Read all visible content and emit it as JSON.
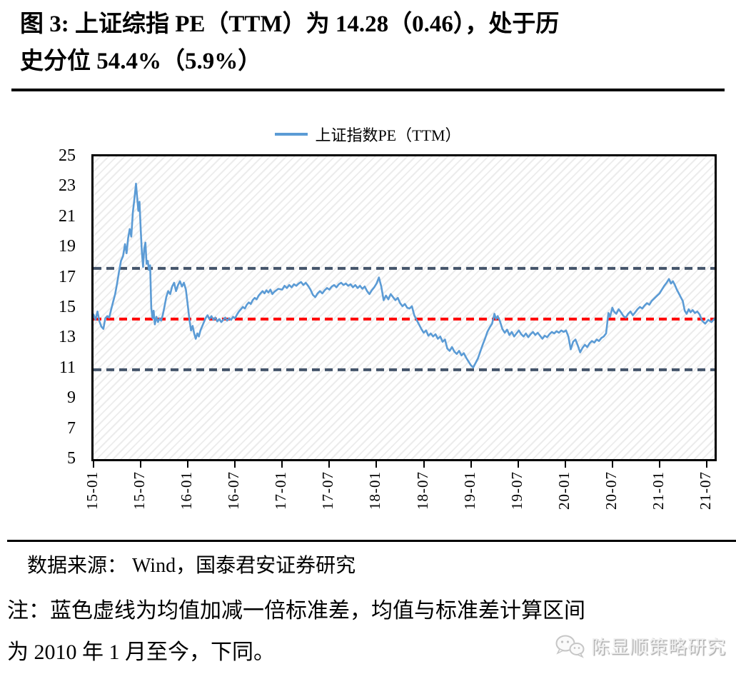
{
  "figure": {
    "title_line1": "图 3: 上证综指 PE（TTM）为 14.28（0.46），处于历",
    "title_line2": "史分位 54.4%（5.9%）",
    "source": "数据来源： Wind，国泰君安证券研究",
    "note_line1": "注：蓝色虚线为均值加减一倍标准差，均值与标准差计算区间",
    "note_line2": "为 2010 年 1 月至今，下同。",
    "watermark": "陈显顺策略研究"
  },
  "colors": {
    "series_blue": "#5B9BD5",
    "mean_red": "#FF0000",
    "band_navy": "#44546A",
    "hatch_gray": "#ececec",
    "axis_black": "#000000"
  },
  "chart_data": {
    "type": "line",
    "title": "",
    "legend_position": "top-center",
    "grid": false,
    "plot_background": "diagonal-hatch",
    "legend": [
      {
        "label": "上证指数PE（TTM）",
        "color": "#5B9BD5"
      }
    ],
    "x_axis": {
      "unit": "months since 2015-01",
      "min": 0,
      "max": 79,
      "tick_interval_months": 6,
      "tick_labels": [
        "15-01",
        "15-07",
        "16-01",
        "16-07",
        "17-01",
        "17-07",
        "18-01",
        "18-07",
        "19-01",
        "19-07",
        "20-01",
        "20-07",
        "21-01",
        "21-07"
      ]
    },
    "y_axis": {
      "min": 5,
      "max": 25,
      "ticks": [
        25,
        23,
        21,
        19,
        17,
        15,
        13,
        11,
        9,
        7,
        5
      ]
    },
    "reference_lines": [
      {
        "name": "mean",
        "value": 14.25,
        "color": "#FF0000",
        "style": "dashed"
      },
      {
        "name": "mean_plus_1std",
        "value": 17.6,
        "color": "#44546A",
        "style": "dashed"
      },
      {
        "name": "mean_minus_1std",
        "value": 10.9,
        "color": "#44546A",
        "style": "dashed"
      }
    ],
    "series": [
      {
        "name": "上证指数PE（TTM）",
        "color": "#5B9BD5",
        "current_value": 14.28,
        "points": [
          [
            0,
            14.55
          ],
          [
            0.25,
            14.2
          ],
          [
            0.5,
            14.75
          ],
          [
            0.75,
            14.1
          ],
          [
            1,
            13.75
          ],
          [
            1.25,
            13.6
          ],
          [
            1.5,
            14.3
          ],
          [
            1.75,
            14.45
          ],
          [
            2,
            14.35
          ],
          [
            2.25,
            14.9
          ],
          [
            2.5,
            15.4
          ],
          [
            2.75,
            15.9
          ],
          [
            3,
            16.6
          ],
          [
            3.25,
            17.4
          ],
          [
            3.5,
            18.1
          ],
          [
            3.75,
            18.4
          ],
          [
            4,
            19.2
          ],
          [
            4.2,
            18.6
          ],
          [
            4.4,
            19.6
          ],
          [
            4.6,
            20.2
          ],
          [
            4.8,
            19.7
          ],
          [
            5,
            21.3
          ],
          [
            5.2,
            22.2
          ],
          [
            5.4,
            23.2
          ],
          [
            5.55,
            22.3
          ],
          [
            5.7,
            21.4
          ],
          [
            5.85,
            22.0
          ],
          [
            6,
            20.2
          ],
          [
            6.15,
            18.7
          ],
          [
            6.3,
            17.7
          ],
          [
            6.45,
            18.9
          ],
          [
            6.6,
            19.3
          ],
          [
            6.75,
            17.9
          ],
          [
            6.9,
            18.1
          ],
          [
            7.05,
            17.5
          ],
          [
            7.2,
            17.8
          ],
          [
            7.35,
            15.0
          ],
          [
            7.5,
            14.3
          ],
          [
            7.65,
            14.8
          ],
          [
            7.8,
            13.9
          ],
          [
            8,
            14.4
          ],
          [
            8.2,
            14.05
          ],
          [
            8.4,
            14.3
          ],
          [
            8.6,
            14.15
          ],
          [
            8.8,
            14.5
          ],
          [
            9,
            15.0
          ],
          [
            9.25,
            15.7
          ],
          [
            9.5,
            16.1
          ],
          [
            9.75,
            15.9
          ],
          [
            10,
            16.4
          ],
          [
            10.25,
            16.65
          ],
          [
            10.5,
            16.1
          ],
          [
            10.75,
            16.5
          ],
          [
            11,
            16.75
          ],
          [
            11.25,
            16.4
          ],
          [
            11.5,
            16.65
          ],
          [
            11.75,
            16.2
          ],
          [
            12,
            15.1
          ],
          [
            12.2,
            14.2
          ],
          [
            12.4,
            13.5
          ],
          [
            12.6,
            13.8
          ],
          [
            12.8,
            13.3
          ],
          [
            13,
            12.95
          ],
          [
            13.2,
            13.3
          ],
          [
            13.4,
            13.1
          ],
          [
            13.6,
            13.5
          ],
          [
            13.8,
            13.75
          ],
          [
            14,
            14.0
          ],
          [
            14.25,
            14.3
          ],
          [
            14.5,
            14.5
          ],
          [
            14.75,
            14.25
          ],
          [
            15,
            14.45
          ],
          [
            15.25,
            14.2
          ],
          [
            15.5,
            14.35
          ],
          [
            15.75,
            14.1
          ],
          [
            16,
            14.25
          ],
          [
            16.25,
            14.05
          ],
          [
            16.5,
            14.2
          ],
          [
            16.75,
            14.35
          ],
          [
            17,
            14.15
          ],
          [
            17.25,
            14.3
          ],
          [
            17.5,
            14.2
          ],
          [
            17.75,
            14.4
          ],
          [
            18,
            14.3
          ],
          [
            18.25,
            14.55
          ],
          [
            18.5,
            14.75
          ],
          [
            18.75,
            14.9
          ],
          [
            19,
            15.05
          ],
          [
            19.25,
            14.95
          ],
          [
            19.5,
            15.2
          ],
          [
            19.75,
            15.35
          ],
          [
            20,
            15.25
          ],
          [
            20.25,
            15.5
          ],
          [
            20.5,
            15.65
          ],
          [
            20.75,
            15.55
          ],
          [
            21,
            15.8
          ],
          [
            21.25,
            15.95
          ],
          [
            21.5,
            16.1
          ],
          [
            21.75,
            15.95
          ],
          [
            22,
            16.15
          ],
          [
            22.25,
            16.0
          ],
          [
            22.5,
            16.2
          ],
          [
            22.75,
            15.9
          ],
          [
            23,
            16.05
          ],
          [
            23.5,
            16.25
          ],
          [
            24,
            16.2
          ],
          [
            24.3,
            16.45
          ],
          [
            24.6,
            16.3
          ],
          [
            24.9,
            16.5
          ],
          [
            25.2,
            16.35
          ],
          [
            25.5,
            16.55
          ],
          [
            25.8,
            16.45
          ],
          [
            26.1,
            16.6
          ],
          [
            26.4,
            16.7
          ],
          [
            26.7,
            16.5
          ],
          [
            27,
            16.65
          ],
          [
            27.3,
            16.45
          ],
          [
            27.6,
            16.2
          ],
          [
            27.9,
            15.85
          ],
          [
            28.2,
            15.7
          ],
          [
            28.5,
            15.95
          ],
          [
            28.8,
            16.1
          ],
          [
            29.1,
            15.95
          ],
          [
            29.4,
            16.15
          ],
          [
            29.7,
            16.3
          ],
          [
            30,
            16.2
          ],
          [
            30.3,
            16.4
          ],
          [
            30.6,
            16.5
          ],
          [
            30.9,
            16.35
          ],
          [
            31.2,
            16.55
          ],
          [
            31.5,
            16.65
          ],
          [
            31.8,
            16.5
          ],
          [
            32.1,
            16.6
          ],
          [
            32.4,
            16.45
          ],
          [
            32.7,
            16.55
          ],
          [
            33,
            16.35
          ],
          [
            33.3,
            16.5
          ],
          [
            33.6,
            16.3
          ],
          [
            33.9,
            16.45
          ],
          [
            34.2,
            16.25
          ],
          [
            34.5,
            16.4
          ],
          [
            34.8,
            16.1
          ],
          [
            35.1,
            15.9
          ],
          [
            35.4,
            16.15
          ],
          [
            35.7,
            16.35
          ],
          [
            36,
            16.6
          ],
          [
            36.3,
            17.0
          ],
          [
            36.6,
            16.4
          ],
          [
            36.9,
            15.5
          ],
          [
            37.2,
            15.8
          ],
          [
            37.5,
            15.55
          ],
          [
            37.8,
            15.9
          ],
          [
            38.1,
            15.7
          ],
          [
            38.4,
            15.5
          ],
          [
            38.7,
            15.65
          ],
          [
            39,
            15.3
          ],
          [
            39.3,
            15.1
          ],
          [
            39.6,
            15.25
          ],
          [
            39.9,
            15.0
          ],
          [
            40.2,
            14.95
          ],
          [
            40.5,
            15.1
          ],
          [
            40.8,
            14.5
          ],
          [
            41.1,
            14.2
          ],
          [
            41.4,
            13.9
          ],
          [
            41.7,
            13.6
          ],
          [
            42,
            13.35
          ],
          [
            42.3,
            13.5
          ],
          [
            42.6,
            13.15
          ],
          [
            42.9,
            13.3
          ],
          [
            43.2,
            13.1
          ],
          [
            43.5,
            13.25
          ],
          [
            43.8,
            12.95
          ],
          [
            44.1,
            13.1
          ],
          [
            44.4,
            12.75
          ],
          [
            44.7,
            12.9
          ],
          [
            45,
            12.3
          ],
          [
            45.3,
            12.15
          ],
          [
            45.6,
            12.4
          ],
          [
            45.9,
            12.1
          ],
          [
            46.2,
            11.95
          ],
          [
            46.5,
            12.15
          ],
          [
            46.8,
            11.85
          ],
          [
            47.1,
            12.0
          ],
          [
            47.4,
            11.7
          ],
          [
            47.7,
            11.45
          ],
          [
            48,
            11.2
          ],
          [
            48.3,
            11.05
          ],
          [
            48.6,
            11.35
          ],
          [
            48.9,
            11.65
          ],
          [
            49.2,
            12.1
          ],
          [
            49.5,
            12.55
          ],
          [
            49.8,
            12.95
          ],
          [
            50.1,
            13.4
          ],
          [
            50.4,
            13.7
          ],
          [
            50.7,
            13.95
          ],
          [
            51,
            14.6
          ],
          [
            51.2,
            14.25
          ],
          [
            51.4,
            14.45
          ],
          [
            51.7,
            14.1
          ],
          [
            52,
            13.6
          ],
          [
            52.3,
            13.35
          ],
          [
            52.6,
            13.55
          ],
          [
            52.9,
            13.2
          ],
          [
            53.2,
            13.4
          ],
          [
            53.5,
            13.1
          ],
          [
            53.8,
            13.3
          ],
          [
            54.1,
            13.5
          ],
          [
            54.4,
            13.25
          ],
          [
            54.7,
            13.1
          ],
          [
            55,
            13.3
          ],
          [
            55.3,
            13.05
          ],
          [
            55.6,
            13.25
          ],
          [
            55.9,
            13.4
          ],
          [
            56.2,
            13.2
          ],
          [
            56.5,
            13.35
          ],
          [
            56.8,
            13.15
          ],
          [
            57.1,
            12.95
          ],
          [
            57.4,
            13.15
          ],
          [
            57.7,
            13.05
          ],
          [
            58,
            13.25
          ],
          [
            58.3,
            13.4
          ],
          [
            58.6,
            13.3
          ],
          [
            58.9,
            13.45
          ],
          [
            59.2,
            13.35
          ],
          [
            59.5,
            13.5
          ],
          [
            59.8,
            13.4
          ],
          [
            60.1,
            13.5
          ],
          [
            60.4,
            13.1
          ],
          [
            60.7,
            12.25
          ],
          [
            61,
            12.75
          ],
          [
            61.3,
            12.9
          ],
          [
            61.6,
            12.5
          ],
          [
            61.9,
            12.05
          ],
          [
            62.2,
            12.35
          ],
          [
            62.5,
            12.55
          ],
          [
            62.8,
            12.4
          ],
          [
            63.1,
            12.65
          ],
          [
            63.4,
            12.8
          ],
          [
            63.7,
            12.7
          ],
          [
            64,
            12.9
          ],
          [
            64.3,
            12.8
          ],
          [
            64.6,
            13.0
          ],
          [
            64.9,
            13.1
          ],
          [
            65.2,
            13.3
          ],
          [
            65.5,
            14.65
          ],
          [
            65.7,
            14.4
          ],
          [
            66,
            15.0
          ],
          [
            66.2,
            14.75
          ],
          [
            66.5,
            14.6
          ],
          [
            66.8,
            14.9
          ],
          [
            67.1,
            14.7
          ],
          [
            67.4,
            14.45
          ],
          [
            67.7,
            14.35
          ],
          [
            68,
            14.6
          ],
          [
            68.3,
            14.75
          ],
          [
            68.6,
            14.5
          ],
          [
            68.9,
            14.7
          ],
          [
            69.2,
            14.9
          ],
          [
            69.5,
            15.05
          ],
          [
            69.8,
            14.95
          ],
          [
            70.1,
            15.15
          ],
          [
            70.4,
            15.3
          ],
          [
            70.7,
            15.2
          ],
          [
            71,
            15.45
          ],
          [
            71.3,
            15.6
          ],
          [
            71.6,
            15.75
          ],
          [
            72,
            15.95
          ],
          [
            72.3,
            16.2
          ],
          [
            72.6,
            16.45
          ],
          [
            72.9,
            16.65
          ],
          [
            73.2,
            16.9
          ],
          [
            73.45,
            16.6
          ],
          [
            73.7,
            16.75
          ],
          [
            73.95,
            16.5
          ],
          [
            74.2,
            16.2
          ],
          [
            74.45,
            15.95
          ],
          [
            74.7,
            15.7
          ],
          [
            74.95,
            15.45
          ],
          [
            75.2,
            14.8
          ],
          [
            75.45,
            14.6
          ],
          [
            75.7,
            14.9
          ],
          [
            75.95,
            14.7
          ],
          [
            76.2,
            14.85
          ],
          [
            76.5,
            14.65
          ],
          [
            76.8,
            14.75
          ],
          [
            77.1,
            14.55
          ],
          [
            77.4,
            14.15
          ],
          [
            77.8,
            13.95
          ],
          [
            78.2,
            14.2
          ],
          [
            78.6,
            14.05
          ],
          [
            79,
            14.28
          ]
        ]
      }
    ]
  }
}
